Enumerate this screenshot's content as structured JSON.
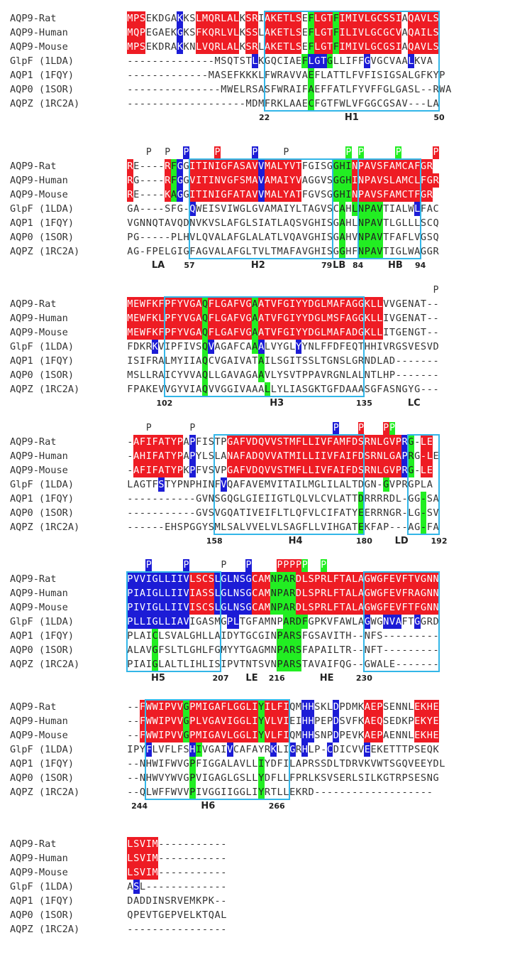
{
  "names": [
    "AQP9-Rat",
    "AQP9-Human",
    "AQP9-Mouse",
    "GlpF (1LDA)",
    "AQP1 (1FQY)",
    "AQP0 (1SOR)",
    "AQPZ (1RC2A)"
  ],
  "blocks": [
    {
      "marks": [],
      "rows": [
        "MPSEKDGAKKSLMQRLALKSRIAKETLSEFLGTFIMIVLGCSSIAQAVLS",
        "MQPEGAEKGKSFKQRLVLKSSLAKETLSEFLGTFILIVLGCGCVAQAILS",
        "MPSEKDRAKKNLVQRLALKSRLAKETLSEFLGTFIMIVLGCGSIAQAVLS",
        "--------------MSQTSTLKGQCIAEFLGTGLLIFFGVGCVAALKVA",
        "-------------MASEFKKKLFWRAVVAEFLATTLFVFISIGSALGFKYP",
        "---------------MWELRSASFWRAIFAEFFATLFYVFFGLGASL--RWA",
        "-------------------MDMFRKLAAECFGTFWLVFGGCGSAV---LA"
      ],
      "colors": [
        "RRR.....B..RRRRRRR.RR.RRRRRR.GRRRGRRRRRRRRRR.RRRRR",
        "RRR.....B..RRRRRRR.RR.RRRRRR.GRRRGRRRRRRRRRR.RRRRR",
        "RRR.....B..RRRRRRR.RR.RRRRRR.GRRRGRRRRRRRRRR.RRRRR",
        "....................B.......GBBBG.....B......B...",
        ".............................G...................",
        ".............................G...................",
        ".............................G...................."
      ],
      "numbers": [
        {
          "text": "22",
          "col": 22
        },
        {
          "text": "50",
          "col": 50
        }
      ],
      "labels": [
        {
          "text": "H1",
          "col": 36
        }
      ]
    },
    {
      "marks": [
        {
          "col": 3,
          "text": "P",
          "color": ""
        },
        {
          "col": 6,
          "text": "P",
          "color": ""
        },
        {
          "col": 9,
          "text": "P",
          "color": "blue"
        },
        {
          "col": 14,
          "text": "P",
          "color": "red"
        },
        {
          "col": 20,
          "text": "P",
          "color": "blue"
        },
        {
          "col": 25,
          "text": "P",
          "color": ""
        },
        {
          "col": 35,
          "text": "P",
          "color": "green"
        },
        {
          "col": 37,
          "text": "P",
          "color": "green"
        },
        {
          "col": 43,
          "text": "P",
          "color": "green"
        },
        {
          "col": 49,
          "text": "P",
          "color": "red"
        }
      ],
      "rows": [
        "RE----RFGGITINIGFASAVVMALYVTFGISGGHINPAVSFAMCAFGR",
        "RG----RFGGVITINVGFSMAVAMAIYVAGGVSGGHINPAVSLAMCLFGR",
        "RE----KAGGITINIGFATAVVMALYATFGVSGGHINPAVSFAMCTFGR",
        "GA----SFG-QWEISVIWGLGVAMAIYLTAGVSCAHLNPAVTIALWLFAC",
        "VGNNQTAVQDNVKVSLAFGLSIATLAQSVGHISGAHLNPAVTLGLLLSCQ",
        "PG-----PLHVLQVALAFGLALATLVQAVGHISGAHVNPAVTFAFLVGSQ",
        "AG-FPELGIGFAGVALAFGLTVLTMAFAVGHISGGHFNPAVTIGLWAGGR"
      ],
      "colors": [
        "R.....RGB.RRRRRRRRRRRBRRRRRR.....GGGRRRRRRRRRRRRRR",
        "R.....RGB.RRRRRRRRRRRBRRRRRR.....GGGRRRRRRRRRRRRRR",
        "R.....RGB.RRRRRRRRRRRBRRRRRR.....GGGRRRRRRRRRRRRRR",
        "..........B.......................G.GGGGG.....B...",
        "..................................G..GGGG.........",
        "..................................G..GGGG.........",
        "..................................G..GGGG........."
      ],
      "numbers": [
        {
          "text": "57",
          "col": 10
        },
        {
          "text": "79",
          "col": 32
        },
        {
          "text": "84",
          "col": 37
        },
        {
          "text": "94",
          "col": 47
        }
      ],
      "labels": [
        {
          "text": "LA",
          "col": 5
        },
        {
          "text": "H2",
          "col": 21
        },
        {
          "text": "LB",
          "col": 34
        },
        {
          "text": "HB",
          "col": 43
        }
      ]
    },
    {
      "marks": [
        {
          "col": 49,
          "text": "P",
          "color": ""
        }
      ],
      "rows": [
        "MEWFKFPFYVGAQFLGAFVGAATVFGIYYDGLMAFAGGKLLVVGENAT--",
        "MEWFKLPFYVGAQFLGAFVGAATVFGIYYDGLMSFAGGKLLIVGENAT--",
        "MEWFKFPFYVGAQFLGAFVGAATVFGIYYDGLMAFADGKLLITGENGT--",
        "FDKRKVIPFIVSQVAGAFCAAALVYGLYYNLFFDFEQTHHIVRGSVESVD",
        "ISIFRALMYIIAQCVGAIVATAILSGITSSLTGNSLGRNDLAD-------",
        "MSLLRAICYVVAQLLGAVAGAAVLYSVTPPAVRGNLALNTLHP-------",
        "FPAKEVVGYVIAQVVGGIVAAALLYLIASGKTGFDAAASGFASNGYG---"
      ],
      "colors": [
        "RRRRRRRRRRRRGRRRRRRRGRRRRRRRRRRRRRRRRRRRR........",
        "RRRRRRRRRRRRGRRRRRRRGRRRRRRRRRRRRRRRRRRRR........",
        "RRRRRRRRRRRRGRRRRRRRGRRRRRRRRRRRRRRRRRRRR........",
        "....B.......GB......GB.....B.....................",
        "............G........G...........................",
        "............G........G...........................",
        "............G.........G..........................."
      ],
      "numbers": [
        {
          "text": "102",
          "col": 6
        },
        {
          "text": "135",
          "col": 38
        }
      ],
      "labels": [
        {
          "text": "H3",
          "col": 24
        },
        {
          "text": "LC",
          "col": 46
        }
      ]
    },
    {
      "marks": [
        {
          "col": 3,
          "text": "P",
          "color": ""
        },
        {
          "col": 10,
          "text": "P",
          "color": ""
        },
        {
          "col": 33,
          "text": "P",
          "color": "blue"
        },
        {
          "col": 37,
          "text": "P",
          "color": "red"
        },
        {
          "col": 41,
          "text": "P",
          "color": "red"
        },
        {
          "col": 42,
          "text": "P",
          "color": "green"
        }
      ],
      "rows": [
        "-AFIFATYPAPFISTPGAFVDQVVSTMFLLIVFAMFDSRNLGVPRG-LE",
        "-AHIFATYPAPYLSLANAFADQVVATMILLIIVFAIFDSRNLGAPRG-LE",
        "-AFIFATYPKPFVSVPGAFVDQVVSTMFLLIVFAIFDSRNLGVPRG-LE",
        "LAGTFSTYPNPHINFVQAFAVEMVITAILMGLILALTDGN-GVPRGPLA",
        "-----------GVNSGQGLGIEIIGTLQLVLCVLATTDRRRRDL-GG-SA",
        "-----------GVSVGQATIVEIFLTLQFVLCIFATYEERRNGR-LG-SV",
        "------EHSPGGYSMLSALVVELVLSAGFLLVIHGATEKFAP---AG-FA"
      ],
      "colors": [
        ".RRRRRRRR.B.....RRRRRRRRRRRRRRRRRRRRRRRRRRRRBG.RR",
        ".RRRRRRRR.B.....RRRRRRRRRRRRRRRRRRRRRRRRRRRRBG.RR",
        ".RRRRRRRR.B.....RRRRRRRRRRRRRRRRRRRRRRRRRRRRBG.RR",
        ".....B.........B.........................G.......",
        ".....................................G.........G..",
        ".....................................G.........G..",
        ".....................................G.........G.."
      ],
      "numbers": [
        {
          "text": "158",
          "col": 14
        },
        {
          "text": "180",
          "col": 38
        },
        {
          "text": "192",
          "col": 50
        }
      ],
      "labels": [
        {
          "text": "H4",
          "col": 27
        },
        {
          "text": "LD",
          "col": 44
        }
      ]
    },
    {
      "marks": [
        {
          "col": 3,
          "text": "P",
          "color": "blue"
        },
        {
          "col": 9,
          "text": "P",
          "color": "blue"
        },
        {
          "col": 15,
          "text": "P",
          "color": ""
        },
        {
          "col": 19,
          "text": "P",
          "color": "blue"
        },
        {
          "col": 24,
          "text": "P",
          "color": "red"
        },
        {
          "col": 25,
          "text": "P",
          "color": "red"
        },
        {
          "col": 26,
          "text": "P",
          "color": "red"
        },
        {
          "col": 27,
          "text": "P",
          "color": "red"
        },
        {
          "col": 28,
          "text": "P",
          "color": "green"
        },
        {
          "col": 31,
          "text": "P",
          "color": "green"
        }
      ],
      "rows": [
        "PVVIGLLIIVLSCSLGLNSGCAMNPARDLSPRLFTALAGWGFEVFTVGNN",
        "PIAIGLLIIVIASSLGLNSGCAMNPARDLSPRLFTALAGWGFEVFRAGNN",
        "PIVIGLLIIVISCSLGLNSGCAMNPARDLSPRLFTALAGWGFEVFTFGNN",
        "PLLIGLLIAVIGASMGPLTGFAMNPARDFGPKVFAWLAGWGNVAFTGGRD",
        "PLAICLSVALGHLLAIDYTGCGINPARSFGSAVITH--NFS---------",
        "ALAVGFSLTLGHLFGMYYTGAGMNPARSFAPAILTR--NFT---------",
        "PIAIGLALTLIHLISIPVTNTSVNPARSTAVAIFQG--GWALE-------"
      ],
      "colors": [
        "BBBBBBBBBBRRRRBBBBBBRRRGGGGRRRRRRRRRRRRRRRRRRRRRRR",
        "BBBBBBBBBBRRRRBBBBBBRRRGGGGRRRRRRRRRRRRRRRRRRRRRRR",
        "BBBBBBBBBBRRRRBBBBBBRRRGGGGRRRRRRRRRRRRRRRRRRRRRRR",
        "BBBBBBBBBB......BB.......GGGG.........B..BBB..B...",
        "....G...................GGGG......................",
        "....G...................GGGG......................",
        "....G...................GGGG......................"
      ],
      "numbers": [
        {
          "text": "207",
          "col": 15
        },
        {
          "text": "216",
          "col": 24
        },
        {
          "text": "230",
          "col": 38
        }
      ],
      "labels": [
        {
          "text": "H5",
          "col": 5
        },
        {
          "text": "LE",
          "col": 20
        },
        {
          "text": "HE",
          "col": 32
        }
      ]
    },
    {
      "marks": [],
      "rows": [
        "--FWWIPVVGPMIGAFLGGLIYILFIQMHHSKLDPDMKAEPSENNLEKHE",
        "--FWWIPVVGPLVGAVIGGLIYVLVIEIHHPEPDSVFKAEQSEDKPEKYE",
        "--FWWIPVVGPMIGAVLGGLIYVLFIQMHHSNPDPEVKAEPAENNLEKHE",
        "IPYFLVFLFSHIVGAIVCAFAYRKLIGRHLP-CDICVVEEKETTTPSEQK",
        "--NHWIFWVGPFIGGALAVLLIYDFILAPRSSDLTDRVKVWTSGQVEEYDL",
        "--NHWVYWVGPVIGAGLGSLLYDFLLFPRLKSVSERLSILKGTRPSESNG",
        "--QLWFFWVVPIVGGIIGGLIYRTLLEKRD-------------------"
      ],
      "colors": [
        "..RRRRRRRGRRRRRRRRRRRGRRRR..BB...B....RRR.....RRRR",
        "..RRRRRRRGRRRRRRRRRRRGRRRR..BB...B....RRR.....RRRR",
        "..RRRRRRRGRRRRRRRRRRRGRRRR..BB...B....RRR.....RRRR",
        "...B......BG....B......B..B.B...B.....B.........",
        "..........G..........G............................",
        "..........G..........G............................",
        "..........G..........G............................"
      ],
      "numbers": [
        {
          "text": "244",
          "col": 2
        },
        {
          "text": "266",
          "col": 24
        }
      ],
      "labels": [
        {
          "text": "H6",
          "col": 13
        }
      ]
    },
    {
      "marks": [],
      "rows": [
        "LSVIM-----------",
        "LSVIM-----------",
        "LSVIM-----------",
        "ASL-------------",
        "DADDINSRVEMKPK--",
        "QPEVTGEPVELKTQAL",
        "----------------"
      ],
      "colors": [
        "RRRRR",
        "RRRRR",
        "RRRRR",
        ".B...",
        ".....",
        ".....",
        "....."
      ],
      "numbers": [],
      "labels": []
    }
  ]
}
